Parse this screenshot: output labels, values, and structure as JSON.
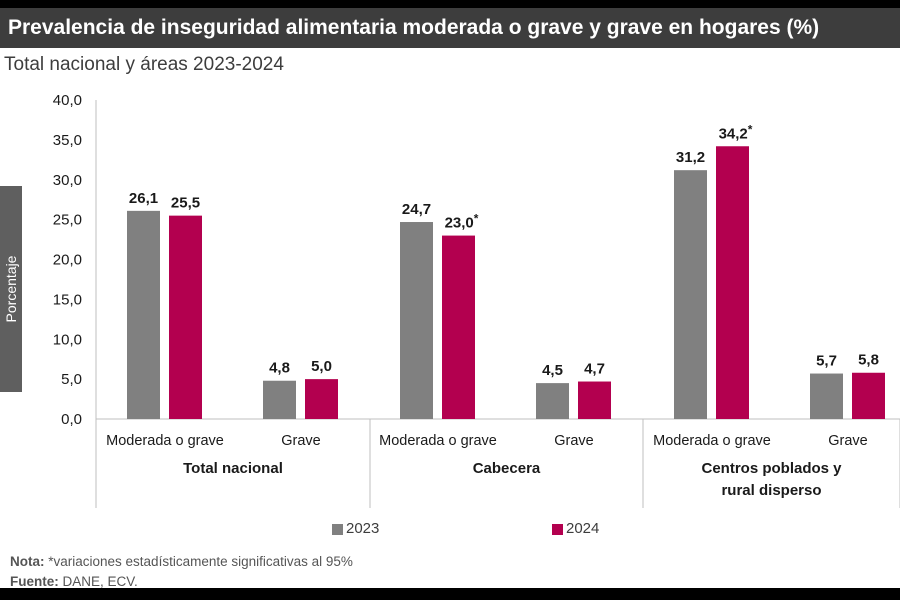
{
  "header": {
    "title": "Prevalencia de inseguridad alimentaria moderada o grave y grave en hogares (%)",
    "subtitle": "Total nacional y áreas 2023-2024"
  },
  "footer": {
    "note_label": "Nota:",
    "note_text": " *variaciones estadísticamente significativas al 95%",
    "source_label": "Fuente:",
    "source_text": " DANE, ECV."
  },
  "colors": {
    "s2023": "#808080",
    "s2024": "#b3004f",
    "header_bg": "#3d3d3d"
  },
  "chart_data": {
    "type": "bar",
    "title": "Prevalencia de inseguridad alimentaria moderada o grave y grave en hogares (%)",
    "subtitle": "Total nacional y áreas 2023-2024",
    "ylabel": "Porcentaje",
    "ylim": [
      0,
      40
    ],
    "yticks": [
      "0,0",
      "5,0",
      "10,0",
      "15,0",
      "20,0",
      "25,0",
      "30,0",
      "35,0",
      "40,0"
    ],
    "grid": false,
    "legend_position": "bottom",
    "groups": [
      {
        "label": "Total nacional",
        "categories": [
          "Moderada o grave",
          "Grave"
        ]
      },
      {
        "label": "Cabecera",
        "categories": [
          "Moderada o grave",
          "Grave"
        ]
      },
      {
        "label": "Centros poblados y rural disperso",
        "categories": [
          "Moderada o grave",
          "Grave"
        ]
      }
    ],
    "series": [
      {
        "name": "2023",
        "values": [
          26.1,
          4.8,
          24.7,
          4.5,
          31.2,
          5.7
        ],
        "labels": [
          "26,1",
          "4,8",
          "24,7",
          "4,5",
          "31,2",
          "5,7"
        ]
      },
      {
        "name": "2024",
        "values": [
          25.5,
          5.0,
          23.0,
          4.7,
          34.2,
          5.8
        ],
        "labels": [
          "25,5",
          "5,0",
          "23,0*",
          "4,7",
          "34,2*",
          "5,8"
        ]
      }
    ]
  }
}
